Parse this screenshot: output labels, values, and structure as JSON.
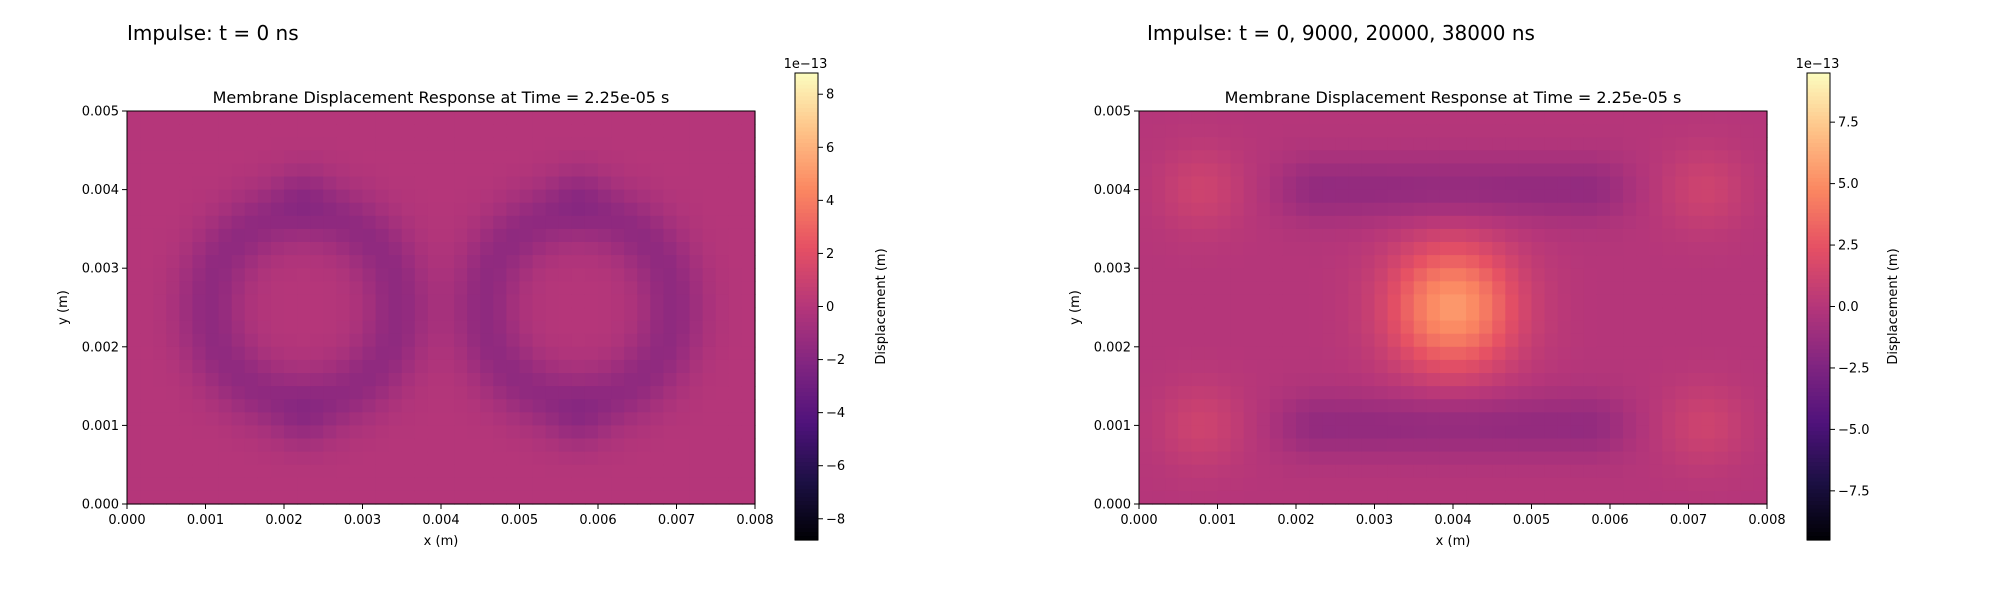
{
  "figure": {
    "left_heading": "Impulse: t = 0 ns",
    "right_heading": "Impulse: t = 0, 9000, 20000, 38000 ns"
  },
  "chart_data": [
    {
      "type": "heatmap",
      "colormap": "magma",
      "title": "Membrane Displacement Response at Time = 2.25e-05 s",
      "xlabel": "x (m)",
      "ylabel": "y (m)",
      "xlim": [
        0,
        0.008
      ],
      "ylim": [
        0,
        0.005
      ],
      "xticks": [
        "0.000",
        "0.001",
        "0.002",
        "0.003",
        "0.004",
        "0.005",
        "0.006",
        "0.007",
        "0.008"
      ],
      "yticks": [
        "0.000",
        "0.001",
        "0.002",
        "0.003",
        "0.004",
        "0.005"
      ],
      "colorbar": {
        "label": "Displacement (m)",
        "scale_label": "1e−13",
        "range": [
          -8.8,
          8.8
        ],
        "ticks": [
          -8,
          -6,
          -4,
          -2,
          0,
          2,
          4,
          6,
          8
        ],
        "tick_labels": [
          "−8",
          "−6",
          "−4",
          "−2",
          "0",
          "2",
          "4",
          "6",
          "8"
        ]
      },
      "value_range_approx": [
        -2.3,
        0.3
      ],
      "features": [
        {
          "shape": "ring",
          "cx": 0.00225,
          "cy": 0.0025,
          "r": 0.0012,
          "amplitude": -1.6,
          "width": 0.0003
        },
        {
          "shape": "ring",
          "cx": 0.00575,
          "cy": 0.0025,
          "r": 0.0012,
          "amplitude": -1.6,
          "width": 0.0003
        },
        {
          "shape": "blob",
          "cx": 0.00225,
          "cy": 0.004,
          "r": 0.0004,
          "amplitude": -0.6
        },
        {
          "shape": "blob",
          "cx": 0.00225,
          "cy": 0.001,
          "r": 0.0004,
          "amplitude": -0.6
        },
        {
          "shape": "blob",
          "cx": 0.00575,
          "cy": 0.004,
          "r": 0.0004,
          "amplitude": -0.6
        },
        {
          "shape": "blob",
          "cx": 0.00575,
          "cy": 0.001,
          "r": 0.0004,
          "amplitude": -0.6
        }
      ]
    },
    {
      "type": "heatmap",
      "colormap": "magma",
      "title": "Membrane Displacement Response at Time = 2.25e-05 s",
      "xlabel": "x (m)",
      "ylabel": "y (m)",
      "xlim": [
        0,
        0.008
      ],
      "ylim": [
        0,
        0.005
      ],
      "xticks": [
        "0.000",
        "0.001",
        "0.002",
        "0.003",
        "0.004",
        "0.005",
        "0.006",
        "0.007",
        "0.008"
      ],
      "yticks": [
        "0.000",
        "0.001",
        "0.002",
        "0.003",
        "0.004",
        "0.005"
      ],
      "colorbar": {
        "label": "Displacement (m)",
        "scale_label": "1e−13",
        "range": [
          -9.5,
          9.5
        ],
        "ticks": [
          -7.5,
          -5.0,
          -2.5,
          0.0,
          2.5,
          5.0,
          7.5
        ],
        "tick_labels": [
          "−7.5",
          "−5.0",
          "−2.5",
          "0.0",
          "2.5",
          "5.0",
          "7.5"
        ]
      },
      "value_range_approx": [
        -2.5,
        5.5
      ],
      "features": [
        {
          "shape": "blob",
          "cx": 0.004,
          "cy": 0.0025,
          "r": 0.0009,
          "amplitude": 5.5
        },
        {
          "shape": "bar",
          "cx": 0.004,
          "cy": 0.004,
          "hx": 0.0017,
          "hy": 0.0004,
          "amplitude": -1.6
        },
        {
          "shape": "bar",
          "cx": 0.004,
          "cy": 0.001,
          "hx": 0.0017,
          "hy": 0.0004,
          "amplitude": -1.6
        },
        {
          "shape": "blob",
          "cx": 0.0008,
          "cy": 0.004,
          "r": 0.0006,
          "amplitude": 1.2
        },
        {
          "shape": "blob",
          "cx": 0.0008,
          "cy": 0.001,
          "r": 0.0006,
          "amplitude": 1.2
        },
        {
          "shape": "blob",
          "cx": 0.0072,
          "cy": 0.004,
          "r": 0.0006,
          "amplitude": 1.2
        },
        {
          "shape": "blob",
          "cx": 0.0072,
          "cy": 0.001,
          "r": 0.0006,
          "amplitude": 1.2
        }
      ]
    }
  ]
}
